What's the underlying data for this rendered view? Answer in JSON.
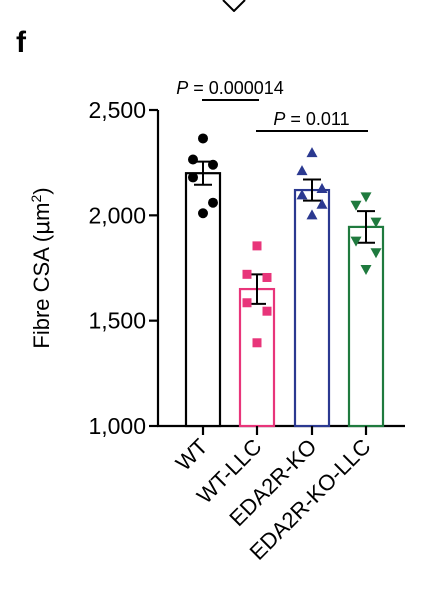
{
  "panel_label": "f",
  "chart_data": {
    "type": "bar",
    "title": "",
    "xlabel": "",
    "ylabel": "Fibre CSA (μm²)",
    "ylabel_parts": {
      "main": "Fibre CSA (",
      "mu": "μ",
      "unit": "m",
      "sup": "2",
      "close": ")"
    },
    "ylim": [
      1000,
      2500
    ],
    "yticks": [
      1000,
      1500,
      2000,
      2500
    ],
    "ytick_labels": [
      "1,000",
      "1,500",
      "2,000",
      "2,500"
    ],
    "categories": [
      "WT",
      "WT-LLC",
      "EDA2R-KO",
      "EDA2R-KO-LLC"
    ],
    "colors": [
      "#000000",
      "#e8357a",
      "#2b3990",
      "#1f7a3e"
    ],
    "markers": [
      "circle",
      "square",
      "triangle-up",
      "triangle-down"
    ],
    "values": [
      2200,
      1650,
      2120,
      1945
    ],
    "sem": [
      55,
      70,
      50,
      75
    ],
    "points": [
      [
        2365,
        2265,
        2240,
        2180,
        2060,
        2010
      ],
      [
        1855,
        1720,
        1705,
        1585,
        1545,
        1395
      ],
      [
        2295,
        2210,
        2125,
        2095,
        2050,
        2000
      ],
      [
        2090,
        2050,
        1970,
        1880,
        1825,
        1745
      ]
    ],
    "annotations": [
      {
        "prefix": "P",
        "text": " = 0.000014",
        "from": 0,
        "to": 1
      },
      {
        "prefix": "P",
        "text": " = 0.011",
        "from": 1,
        "to": 3
      }
    ]
  }
}
